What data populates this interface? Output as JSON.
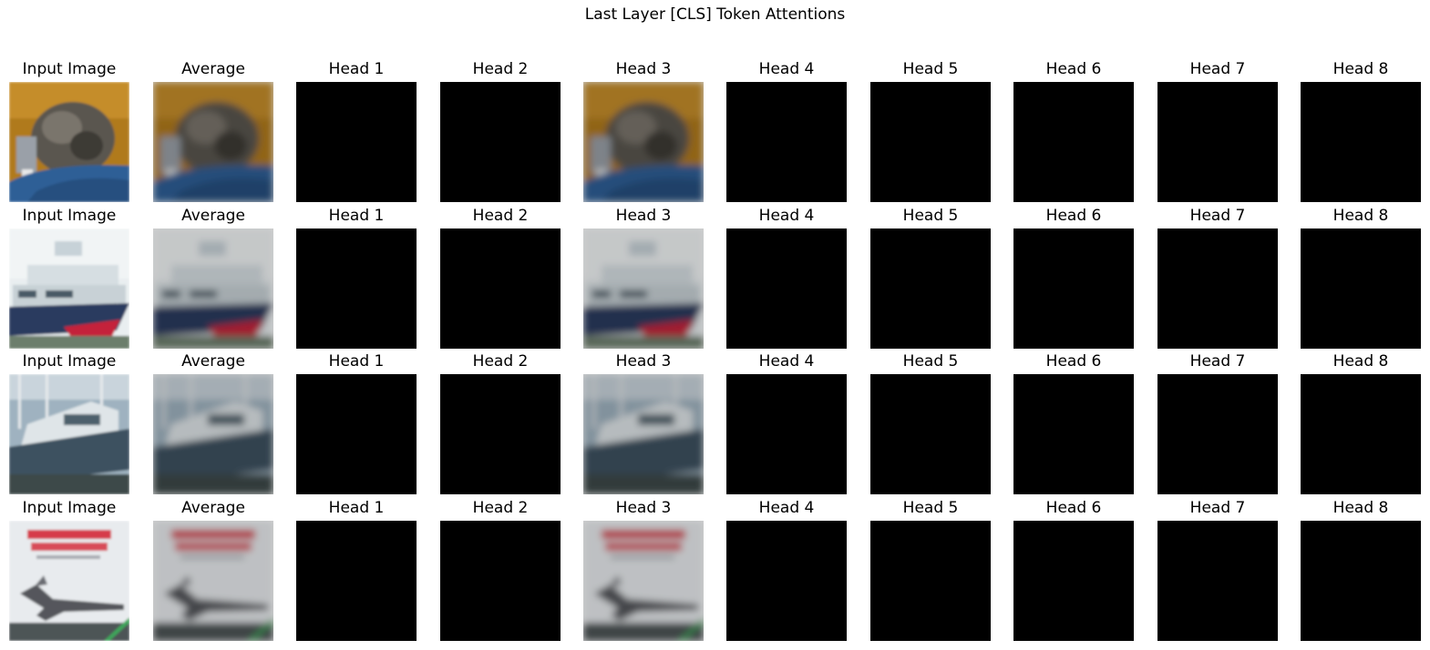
{
  "figure": {
    "title": "Last Layer [CLS] Token Attentions"
  },
  "grid": {
    "column_titles": [
      "Input Image",
      "Average",
      "Head 1",
      "Head 2",
      "Head 3",
      "Head 4",
      "Head 5",
      "Head 6",
      "Head 7",
      "Head 8"
    ],
    "rows": [
      {
        "subject": "cat on blue fabric",
        "black_columns": [
          "Head 1",
          "Head 2",
          "Head 4",
          "Head 5",
          "Head 6",
          "Head 7",
          "Head 8"
        ]
      },
      {
        "subject": "white ship with red hull",
        "black_columns": [
          "Head 1",
          "Head 2",
          "Head 4",
          "Head 5",
          "Head 6",
          "Head 7",
          "Head 8"
        ]
      },
      {
        "subject": "white boat in harbor",
        "black_columns": [
          "Head 1",
          "Head 2",
          "Head 4",
          "Head 5",
          "Head 6",
          "Head 7",
          "Head 8"
        ]
      },
      {
        "subject": "airplane on poster with red text",
        "black_columns": [
          "Head 1",
          "Head 2",
          "Head 4",
          "Head 5",
          "Head 6",
          "Head 7",
          "Head 8"
        ]
      }
    ]
  }
}
